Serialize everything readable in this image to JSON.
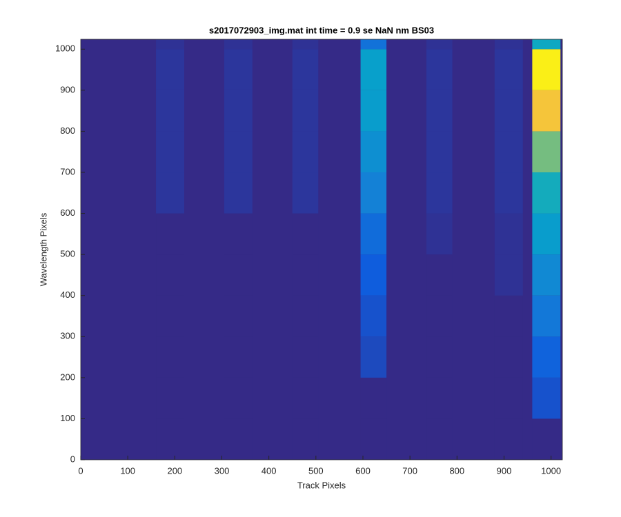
{
  "chart_data": {
    "type": "heatmap",
    "title": "s2017072903_img.mat int time = 0.9 se  NaN nm BS03",
    "xlabel": "Track Pixels",
    "ylabel": "Wavelength Pixels",
    "xlim": [
      0,
      1024
    ],
    "ylim": [
      0,
      1024
    ],
    "xticks": [
      0,
      100,
      200,
      300,
      400,
      500,
      600,
      700,
      800,
      900,
      1000
    ],
    "yticks": [
      0,
      100,
      200,
      300,
      400,
      500,
      600,
      700,
      800,
      900,
      1000
    ],
    "clim": [
      0,
      1
    ],
    "colormap": [
      "#352a87",
      "#0f5cdd",
      "#1481d6",
      "#06a4ca",
      "#2eb7a4",
      "#87bf77",
      "#d1bb59",
      "#fec832",
      "#f9fb0e"
    ],
    "ybins": [
      0,
      100,
      200,
      300,
      400,
      500,
      600,
      700,
      800,
      900,
      1000,
      1024
    ],
    "tracks": [
      {
        "xrange": [
          160,
          220
        ],
        "values": [
          0,
          0,
          0,
          0,
          0,
          0,
          0.03,
          0.03,
          0.03,
          0.03,
          0.02
        ]
      },
      {
        "xrange": [
          305,
          365
        ],
        "values": [
          0,
          0,
          0,
          0,
          0,
          0,
          0.03,
          0.03,
          0.03,
          0.03,
          0.02
        ]
      },
      {
        "xrange": [
          450,
          505
        ],
        "values": [
          0,
          0,
          0,
          0,
          0,
          0,
          0.03,
          0.03,
          0.03,
          0.03,
          0.02
        ]
      },
      {
        "xrange": [
          595,
          650
        ],
        "values": [
          0,
          0,
          0.08,
          0.1,
          0.13,
          0.18,
          0.25,
          0.3,
          0.35,
          0.36,
          0.2
        ]
      },
      {
        "xrange": [
          735,
          790
        ],
        "values": [
          0,
          0,
          0,
          0,
          0,
          0.02,
          0.03,
          0.03,
          0.03,
          0.03,
          0.02
        ]
      },
      {
        "xrange": [
          880,
          940
        ],
        "values": [
          0,
          0,
          0,
          0,
          0.02,
          0.02,
          0.03,
          0.03,
          0.03,
          0.03,
          0.02
        ]
      },
      {
        "xrange": [
          960,
          1020
        ],
        "values": [
          0,
          0.1,
          0.15,
          0.22,
          0.28,
          0.35,
          0.42,
          0.6,
          0.85,
          0.97,
          0.4
        ]
      }
    ]
  }
}
